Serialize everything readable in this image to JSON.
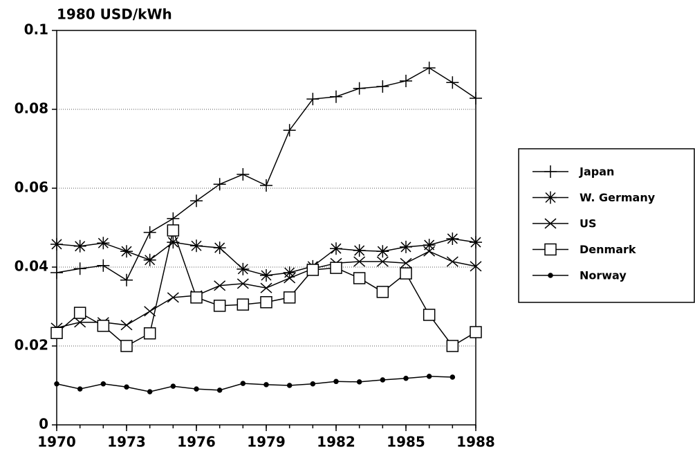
{
  "chart_data": {
    "type": "line",
    "y_label": "1980 USD/kWh",
    "x": [
      1970,
      1971,
      1972,
      1973,
      1974,
      1975,
      1976,
      1977,
      1978,
      1979,
      1980,
      1981,
      1982,
      1983,
      1984,
      1985,
      1986,
      1987,
      1988
    ],
    "xlim": [
      1970,
      1988
    ],
    "xticks": [
      1970,
      1973,
      1976,
      1979,
      1982,
      1985,
      1988
    ],
    "ylim": [
      0,
      0.1
    ],
    "yticks": [
      0,
      0.02,
      0.04,
      0.06,
      0.08,
      0.1
    ],
    "grid": true,
    "legend": "right",
    "series": [
      {
        "name": "Japan",
        "color": "#000000",
        "marker": "plus",
        "values": [
          0.0386,
          0.0396,
          0.0404,
          0.0367,
          0.0488,
          0.0523,
          0.0568,
          0.061,
          0.0635,
          0.0607,
          0.0747,
          0.0826,
          0.0832,
          0.0853,
          0.0858,
          0.0872,
          0.0905,
          0.0868,
          0.0828
        ]
      },
      {
        "name": "W. Germany",
        "color": "#000000",
        "marker": "asterisk",
        "values": [
          0.0458,
          0.0453,
          0.0461,
          0.044,
          0.0418,
          0.0463,
          0.0454,
          0.0449,
          0.0395,
          0.0379,
          0.0386,
          0.0402,
          0.0447,
          0.0442,
          0.044,
          0.0451,
          0.0456,
          0.0472,
          0.0463
        ]
      },
      {
        "name": "US",
        "color": "#000000",
        "marker": "cross",
        "values": [
          0.0246,
          0.026,
          0.026,
          0.0253,
          0.0288,
          0.0323,
          0.0328,
          0.0353,
          0.0358,
          0.0347,
          0.0372,
          0.0396,
          0.041,
          0.0414,
          0.0414,
          0.041,
          0.044,
          0.0414,
          0.0402
        ]
      },
      {
        "name": "Denmark",
        "color": "#000000",
        "marker": "square",
        "values": [
          0.0233,
          0.0284,
          0.0251,
          0.02,
          0.0232,
          0.0493,
          0.0323,
          0.0302,
          0.0305,
          0.0311,
          0.0323,
          0.0393,
          0.0398,
          0.0372,
          0.0337,
          0.0384,
          0.0279,
          0.02,
          0.0235
        ]
      },
      {
        "name": "Norway",
        "color": "#000000",
        "marker": "dot",
        "values": [
          0.0104,
          0.0091,
          0.0104,
          0.0096,
          0.0084,
          0.0098,
          0.0091,
          0.0088,
          0.0105,
          0.0102,
          0.01,
          0.0104,
          0.011,
          0.0109,
          0.0114,
          0.0118,
          0.0123,
          0.0121,
          null
        ]
      }
    ]
  }
}
